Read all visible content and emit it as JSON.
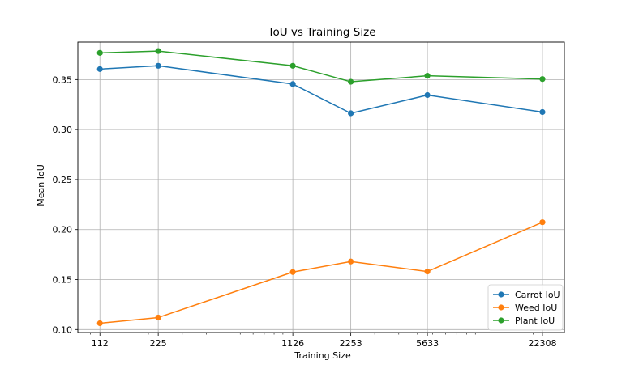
{
  "chart_data": {
    "type": "line",
    "title": "IoU vs Training Size",
    "xlabel": "Training Size",
    "ylabel": "Mean IoU",
    "x_scale": "log",
    "x": [
      112,
      225,
      1126,
      2253,
      5633,
      22308
    ],
    "x_tick_labels": [
      "112",
      "225",
      "1126",
      "2253",
      "5633",
      "22308"
    ],
    "ylim": [
      0.097,
      0.3875
    ],
    "y_ticks": [
      0.1,
      0.15,
      0.2,
      0.25,
      0.3,
      0.35
    ],
    "y_tick_labels": [
      "0.10",
      "0.15",
      "0.20",
      "0.25",
      "0.30",
      "0.35"
    ],
    "grid": true,
    "legend_position": "lower right",
    "series": [
      {
        "name": "Carrot IoU",
        "color": "#1f77b4",
        "values": [
          0.3605,
          0.3638,
          0.3455,
          0.3163,
          0.3345,
          0.3175
        ]
      },
      {
        "name": "Weed IoU",
        "color": "#ff7f0e",
        "values": [
          0.1063,
          0.112,
          0.1575,
          0.168,
          0.158,
          0.2073
        ]
      },
      {
        "name": "Plant IoU",
        "color": "#2ca02c",
        "values": [
          0.3767,
          0.3785,
          0.3638,
          0.3478,
          0.3538,
          0.3505
        ]
      }
    ]
  }
}
